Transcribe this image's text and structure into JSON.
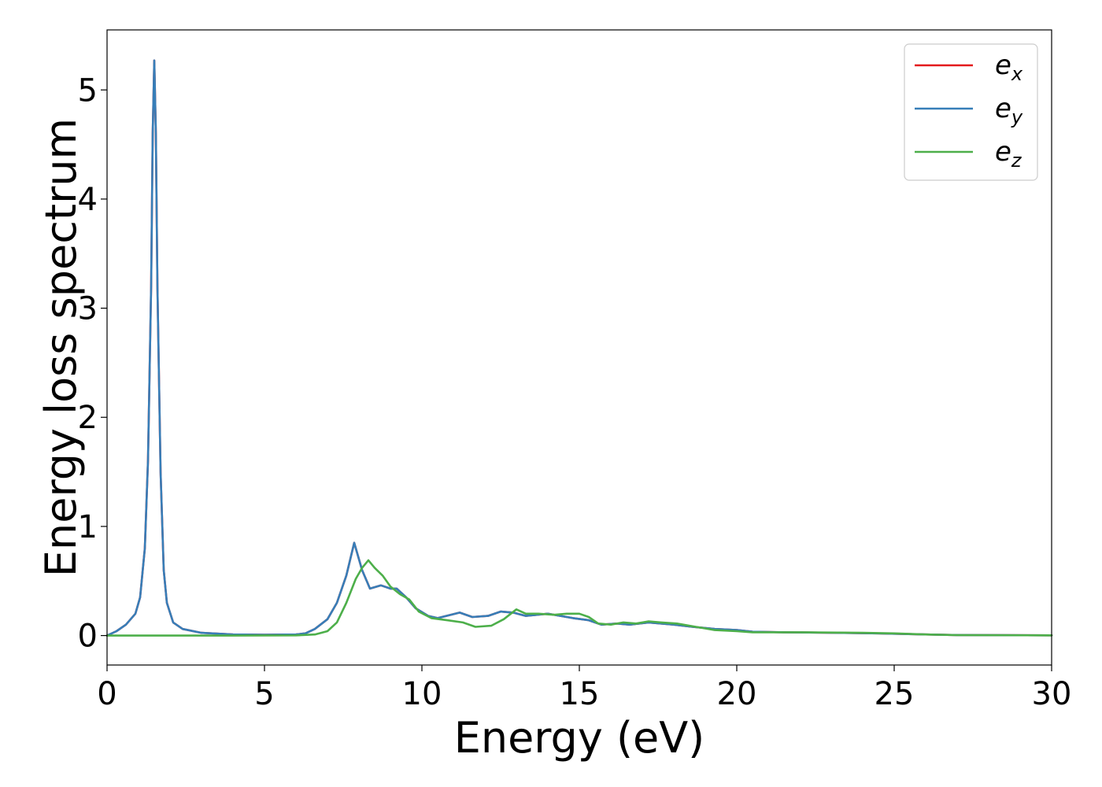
{
  "chart_data": {
    "type": "line",
    "xlabel": "Energy (eV)",
    "ylabel": "Energy loss spectrum",
    "xlim": [
      0,
      30
    ],
    "ylim": [
      -0.27,
      5.55
    ],
    "x_ticks": [
      0,
      5,
      10,
      15,
      20,
      25,
      30
    ],
    "y_ticks": [
      0,
      1,
      2,
      3,
      4,
      5
    ],
    "grid": false,
    "legend_position": "top-right",
    "series": [
      {
        "name": "e_x",
        "label_base": "e",
        "label_sub": "x",
        "color": "#e41a1c",
        "points": [
          [
            0,
            0
          ],
          [
            0.3,
            0.04
          ],
          [
            0.6,
            0.1
          ],
          [
            0.9,
            0.2
          ],
          [
            1.05,
            0.35
          ],
          [
            1.2,
            0.8
          ],
          [
            1.3,
            1.6
          ],
          [
            1.4,
            3.2
          ],
          [
            1.45,
            4.6
          ],
          [
            1.5,
            5.27
          ],
          [
            1.55,
            4.6
          ],
          [
            1.6,
            3.2
          ],
          [
            1.7,
            1.5
          ],
          [
            1.8,
            0.6
          ],
          [
            1.9,
            0.3
          ],
          [
            2.1,
            0.12
          ],
          [
            2.4,
            0.06
          ],
          [
            3,
            0.025
          ],
          [
            4,
            0.01
          ],
          [
            5,
            0.008
          ],
          [
            6,
            0.01
          ],
          [
            6.3,
            0.02
          ],
          [
            6.6,
            0.06
          ],
          [
            7,
            0.15
          ],
          [
            7.3,
            0.3
          ],
          [
            7.6,
            0.55
          ],
          [
            7.85,
            0.85
          ],
          [
            8.1,
            0.6
          ],
          [
            8.35,
            0.43
          ],
          [
            8.7,
            0.46
          ],
          [
            9,
            0.43
          ],
          [
            9.2,
            0.43
          ],
          [
            9.5,
            0.35
          ],
          [
            9.8,
            0.25
          ],
          [
            10.2,
            0.18
          ],
          [
            10.5,
            0.16
          ],
          [
            11.2,
            0.21
          ],
          [
            11.6,
            0.17
          ],
          [
            12.1,
            0.18
          ],
          [
            12.5,
            0.22
          ],
          [
            12.9,
            0.21
          ],
          [
            13.3,
            0.18
          ],
          [
            14,
            0.2
          ],
          [
            14.4,
            0.18
          ],
          [
            14.8,
            0.16
          ],
          [
            15.3,
            0.14
          ],
          [
            15.7,
            0.1
          ],
          [
            16.2,
            0.11
          ],
          [
            16.6,
            0.1
          ],
          [
            17.2,
            0.12
          ],
          [
            17.6,
            0.11
          ],
          [
            18,
            0.1
          ],
          [
            18.6,
            0.08
          ],
          [
            19.3,
            0.06
          ],
          [
            20,
            0.05
          ],
          [
            20.5,
            0.035
          ],
          [
            21.5,
            0.03
          ],
          [
            23.2,
            0.025
          ],
          [
            24.5,
            0.02
          ],
          [
            26,
            0.01
          ],
          [
            27,
            0.005
          ],
          [
            30,
            0.002
          ]
        ]
      },
      {
        "name": "e_y",
        "label_base": "e",
        "label_sub": "y",
        "color": "#377eb8",
        "points": [
          [
            0,
            0
          ],
          [
            0.3,
            0.04
          ],
          [
            0.6,
            0.1
          ],
          [
            0.9,
            0.2
          ],
          [
            1.05,
            0.35
          ],
          [
            1.2,
            0.8
          ],
          [
            1.3,
            1.6
          ],
          [
            1.4,
            3.2
          ],
          [
            1.45,
            4.6
          ],
          [
            1.5,
            5.27
          ],
          [
            1.55,
            4.6
          ],
          [
            1.6,
            3.2
          ],
          [
            1.7,
            1.5
          ],
          [
            1.8,
            0.6
          ],
          [
            1.9,
            0.3
          ],
          [
            2.1,
            0.12
          ],
          [
            2.4,
            0.06
          ],
          [
            3,
            0.025
          ],
          [
            4,
            0.01
          ],
          [
            5,
            0.008
          ],
          [
            6,
            0.01
          ],
          [
            6.3,
            0.02
          ],
          [
            6.6,
            0.06
          ],
          [
            7,
            0.15
          ],
          [
            7.3,
            0.3
          ],
          [
            7.6,
            0.55
          ],
          [
            7.85,
            0.85
          ],
          [
            8.1,
            0.6
          ],
          [
            8.35,
            0.43
          ],
          [
            8.7,
            0.46
          ],
          [
            9,
            0.43
          ],
          [
            9.2,
            0.43
          ],
          [
            9.5,
            0.35
          ],
          [
            9.8,
            0.25
          ],
          [
            10.2,
            0.18
          ],
          [
            10.5,
            0.16
          ],
          [
            11.2,
            0.21
          ],
          [
            11.6,
            0.17
          ],
          [
            12.1,
            0.18
          ],
          [
            12.5,
            0.22
          ],
          [
            12.9,
            0.21
          ],
          [
            13.3,
            0.18
          ],
          [
            14,
            0.2
          ],
          [
            14.4,
            0.18
          ],
          [
            14.8,
            0.16
          ],
          [
            15.3,
            0.14
          ],
          [
            15.7,
            0.1
          ],
          [
            16.2,
            0.11
          ],
          [
            16.6,
            0.1
          ],
          [
            17.2,
            0.12
          ],
          [
            17.6,
            0.11
          ],
          [
            18,
            0.1
          ],
          [
            18.6,
            0.08
          ],
          [
            19.3,
            0.06
          ],
          [
            20,
            0.05
          ],
          [
            20.5,
            0.035
          ],
          [
            21.5,
            0.03
          ],
          [
            23.2,
            0.025
          ],
          [
            24.5,
            0.02
          ],
          [
            26,
            0.01
          ],
          [
            27,
            0.005
          ],
          [
            30,
            0.002
          ]
        ]
      },
      {
        "name": "e_z",
        "label_base": "e",
        "label_sub": "z",
        "color": "#4daf4a",
        "points": [
          [
            0,
            0
          ],
          [
            2,
            0
          ],
          [
            4,
            0
          ],
          [
            6,
            0.002
          ],
          [
            6.6,
            0.01
          ],
          [
            7,
            0.04
          ],
          [
            7.3,
            0.12
          ],
          [
            7.6,
            0.3
          ],
          [
            7.9,
            0.52
          ],
          [
            8.1,
            0.62
          ],
          [
            8.3,
            0.69
          ],
          [
            8.5,
            0.62
          ],
          [
            8.75,
            0.55
          ],
          [
            9,
            0.45
          ],
          [
            9.3,
            0.38
          ],
          [
            9.6,
            0.33
          ],
          [
            9.9,
            0.22
          ],
          [
            10.3,
            0.16
          ],
          [
            10.8,
            0.14
          ],
          [
            11.3,
            0.12
          ],
          [
            11.7,
            0.08
          ],
          [
            12.2,
            0.09
          ],
          [
            12.6,
            0.15
          ],
          [
            13,
            0.24
          ],
          [
            13.3,
            0.2
          ],
          [
            13.7,
            0.2
          ],
          [
            14.2,
            0.19
          ],
          [
            14.6,
            0.2
          ],
          [
            15,
            0.2
          ],
          [
            15.3,
            0.17
          ],
          [
            15.6,
            0.11
          ],
          [
            16,
            0.1
          ],
          [
            16.4,
            0.12
          ],
          [
            16.8,
            0.11
          ],
          [
            17.2,
            0.13
          ],
          [
            17.6,
            0.12
          ],
          [
            18.1,
            0.11
          ],
          [
            18.7,
            0.08
          ],
          [
            19.3,
            0.05
          ],
          [
            20,
            0.04
          ],
          [
            20.5,
            0.03
          ],
          [
            22,
            0.03
          ],
          [
            24,
            0.025
          ],
          [
            25,
            0.02
          ],
          [
            26,
            0.01
          ],
          [
            27,
            0.004
          ],
          [
            30,
            0.002
          ]
        ]
      }
    ]
  }
}
